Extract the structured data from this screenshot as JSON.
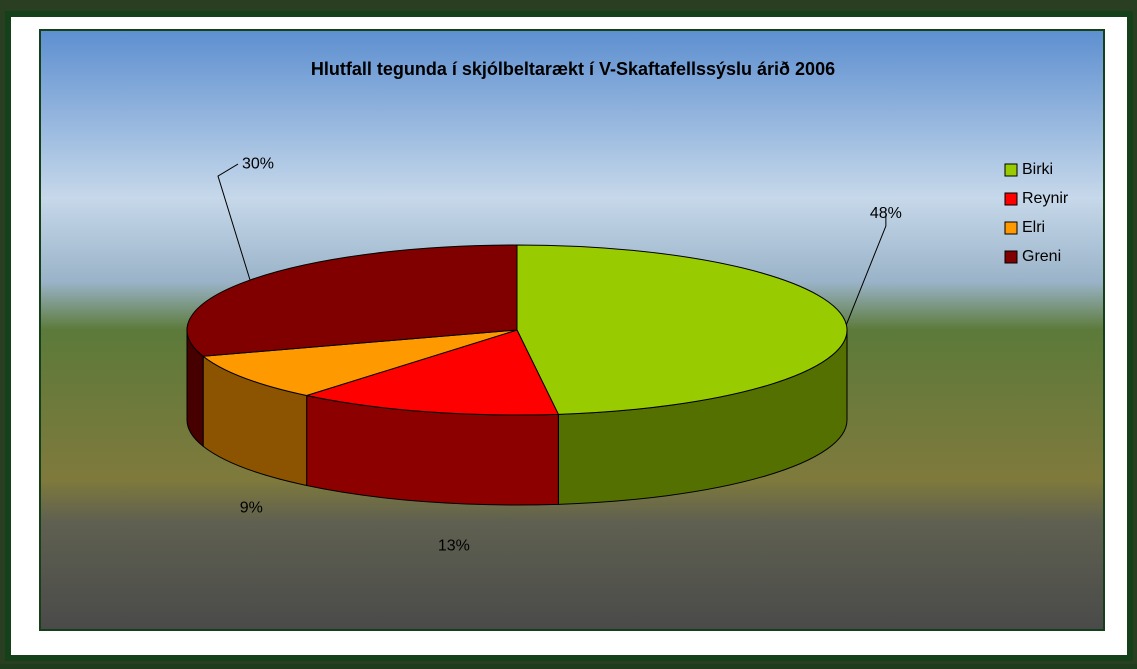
{
  "chart_data": {
    "type": "pie",
    "title": "Hlutfall tegunda í skjólbeltarækt í V-Skaftafellssýslu árið 2006",
    "categories": [
      "Birki",
      "Reynir",
      "Elri",
      "Greni"
    ],
    "values": [
      48,
      13,
      9,
      30
    ],
    "value_labels": [
      "48%",
      "13%",
      "9%",
      "30%"
    ],
    "colors": [
      "#99cc00",
      "#ff0000",
      "#ff9900",
      "#800000"
    ],
    "legend": "right"
  }
}
